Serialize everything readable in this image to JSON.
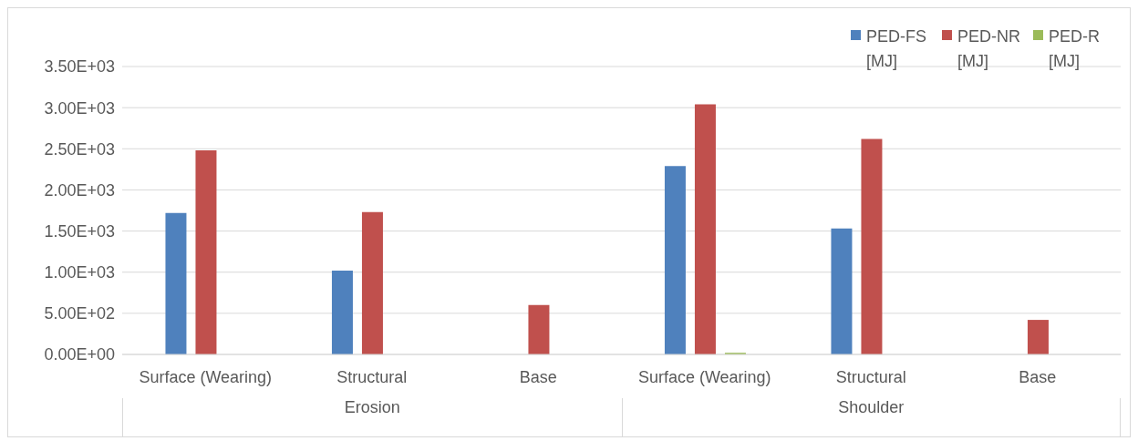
{
  "chart_data": {
    "type": "bar",
    "categories": [
      "Surface (Wearing)",
      "Structural",
      "Base",
      "Surface (Wearing)",
      "Structural",
      "Base"
    ],
    "series": [
      {
        "name": "PED-FS [MJ]",
        "color": "#4f81bd",
        "values": [
          1720,
          1020,
          null,
          2290,
          1530,
          null
        ]
      },
      {
        "name": "PED-NR [MJ]",
        "color": "#c0504d",
        "values": [
          2480,
          1730,
          600,
          3040,
          2620,
          420
        ]
      },
      {
        "name": "PED-R [MJ]",
        "color": "#9bbb59",
        "values": [
          null,
          null,
          null,
          20,
          null,
          null
        ]
      }
    ],
    "ylim": [
      0,
      3500
    ],
    "yticks": [
      {
        "value": 0,
        "label": "0.00E+00"
      },
      {
        "value": 500,
        "label": "5.00E+02"
      },
      {
        "value": 1000,
        "label": "1.00E+03"
      },
      {
        "value": 1500,
        "label": "1.50E+03"
      },
      {
        "value": 2000,
        "label": "2.00E+03"
      },
      {
        "value": 2500,
        "label": "2.50E+03"
      },
      {
        "value": 3000,
        "label": "3.00E+03"
      },
      {
        "value": 3500,
        "label": "3.50E+03"
      }
    ],
    "grid": "y",
    "legend": "top right",
    "annotations": [
      "Erosion",
      "Shoulder"
    ]
  }
}
